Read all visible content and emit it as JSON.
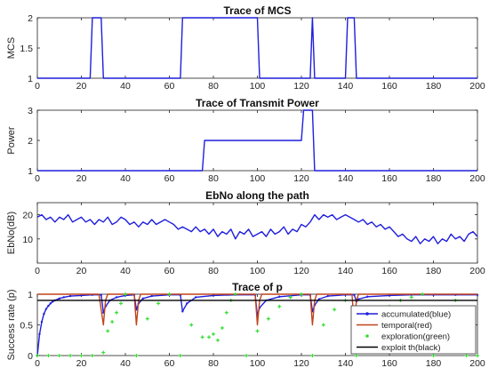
{
  "chart_data": [
    {
      "type": "line",
      "title": "Trace of MCS",
      "xlabel": "",
      "ylabel": "MCS",
      "xlim": [
        0,
        200
      ],
      "ylim": [
        1,
        2
      ],
      "xticks": [
        0,
        20,
        40,
        60,
        80,
        100,
        120,
        140,
        160,
        180,
        200
      ],
      "yticks": [
        1,
        1.5,
        2
      ],
      "ytick_labels": [
        "1",
        "1.5",
        "2"
      ],
      "grid": false,
      "series": [
        {
          "color": "#1f1fdc",
          "x": [
            0,
            24,
            25,
            29,
            30,
            65,
            66,
            100,
            101,
            124,
            125,
            126,
            140,
            141,
            144,
            145,
            200
          ],
          "y": [
            1,
            1,
            2,
            2,
            1,
            1,
            2,
            2,
            1,
            1,
            2,
            1,
            1,
            2,
            2,
            1,
            1
          ]
        }
      ]
    },
    {
      "type": "line",
      "title": "Trace of Transmit Power",
      "xlabel": "",
      "ylabel": "Power",
      "xlim": [
        0,
        200
      ],
      "ylim": [
        1,
        3
      ],
      "xticks": [
        0,
        20,
        40,
        60,
        80,
        100,
        120,
        140,
        160,
        180,
        200
      ],
      "yticks": [
        1,
        2,
        3
      ],
      "ytick_labels": [
        "1",
        "2",
        "3"
      ],
      "grid": false,
      "series": [
        {
          "color": "#1f1fdc",
          "x": [
            0,
            75,
            76,
            120,
            121,
            125,
            126,
            200
          ],
          "y": [
            1,
            1,
            2,
            2,
            3,
            3,
            1,
            1
          ]
        }
      ]
    },
    {
      "type": "line",
      "title": "EbNo along the path",
      "xlabel": "",
      "ylabel": "EbNo(dB)",
      "xlim": [
        0,
        200
      ],
      "ylim": [
        0,
        25
      ],
      "xticks": [
        0,
        20,
        40,
        60,
        80,
        100,
        120,
        140,
        160,
        180,
        200
      ],
      "yticks": [
        10,
        20
      ],
      "ytick_labels": [
        "10",
        "20"
      ],
      "grid": false,
      "series": [
        {
          "color": "#1f1fdc",
          "x": [
            0,
            2,
            4,
            6,
            8,
            10,
            12,
            14,
            16,
            18,
            20,
            22,
            24,
            26,
            28,
            30,
            32,
            34,
            36,
            38,
            40,
            42,
            44,
            46,
            48,
            50,
            52,
            54,
            56,
            58,
            60,
            62,
            64,
            66,
            68,
            70,
            72,
            74,
            76,
            78,
            80,
            82,
            84,
            86,
            88,
            90,
            92,
            94,
            96,
            98,
            100,
            102,
            104,
            106,
            108,
            110,
            112,
            114,
            116,
            118,
            120,
            122,
            124,
            126,
            128,
            130,
            132,
            134,
            136,
            138,
            140,
            142,
            144,
            146,
            148,
            150,
            152,
            154,
            156,
            158,
            160,
            162,
            164,
            166,
            168,
            170,
            172,
            174,
            176,
            178,
            180,
            182,
            184,
            186,
            188,
            190,
            192,
            194,
            196,
            198,
            200
          ],
          "y": [
            19,
            20,
            18,
            19,
            17,
            19,
            18,
            20,
            17,
            18,
            19,
            17,
            18,
            16,
            18,
            17,
            19,
            16,
            17,
            19,
            18,
            16,
            17,
            15,
            17,
            16,
            18,
            16,
            17,
            18,
            17,
            16,
            14,
            15,
            14,
            13,
            15,
            13,
            14,
            12,
            14,
            11,
            13,
            12,
            14,
            10,
            13,
            12,
            14,
            11,
            12,
            13,
            11,
            14,
            12,
            13,
            15,
            12,
            14,
            13,
            16,
            15,
            17,
            20,
            18,
            20,
            19,
            20,
            18,
            19,
            20,
            19,
            18,
            17,
            18,
            16,
            17,
            15,
            16,
            14,
            15,
            13,
            11,
            12,
            10,
            9,
            11,
            8,
            10,
            9,
            11,
            8,
            10,
            9,
            12,
            10,
            11,
            9,
            12,
            13,
            11
          ]
        }
      ]
    },
    {
      "type": "line",
      "title": "Trace of p",
      "xlabel": "",
      "ylabel": "Success rate (p)",
      "xlim": [
        0,
        200
      ],
      "ylim": [
        0,
        1
      ],
      "xticks": [
        0,
        20,
        40,
        60,
        80,
        100,
        120,
        140,
        160,
        180,
        200
      ],
      "yticks": [
        0,
        0.5,
        1
      ],
      "ytick_labels": [
        "0",
        "0.5",
        "1"
      ],
      "grid": false,
      "legend": "bottom-right",
      "legend_entries": [
        "accumulated(blue)",
        "temporal(red)",
        "exploration(green)",
        "exploit th(black)"
      ],
      "exploit_threshold": 0.9,
      "series": [
        {
          "name": "accumulated(blue)",
          "color": "#1f1fdc",
          "style": "line-markers",
          "x": [
            0,
            1,
            2,
            3,
            4,
            5,
            6,
            7,
            8,
            10,
            12,
            15,
            20,
            25,
            29,
            30,
            31,
            33,
            36,
            40,
            44,
            45,
            46,
            48,
            52,
            60,
            65,
            66,
            68,
            72,
            80,
            90,
            99,
            100,
            101,
            104,
            110,
            120,
            124,
            125,
            126,
            128,
            132,
            140,
            144,
            145,
            146,
            150,
            160,
            170,
            180,
            190,
            200
          ],
          "y": [
            0,
            0.35,
            0.55,
            0.68,
            0.76,
            0.81,
            0.85,
            0.88,
            0.9,
            0.93,
            0.95,
            0.97,
            0.98,
            0.99,
            0.99,
            0.7,
            0.8,
            0.9,
            0.95,
            0.98,
            0.99,
            0.75,
            0.85,
            0.93,
            0.97,
            0.99,
            0.99,
            0.72,
            0.85,
            0.95,
            0.98,
            0.99,
            0.99,
            0.65,
            0.78,
            0.9,
            0.96,
            0.99,
            0.99,
            0.72,
            0.82,
            0.92,
            0.97,
            0.99,
            0.99,
            0.88,
            0.92,
            0.96,
            0.98,
            0.99,
            0.99,
            0.99,
            0.99
          ]
        },
        {
          "name": "temporal(red)",
          "color": "#c0441c",
          "style": "line",
          "x": [
            0,
            28,
            30,
            31,
            32,
            44,
            45,
            46,
            47,
            99,
            100,
            101,
            102,
            124,
            125,
            126,
            127,
            143,
            144,
            145,
            146,
            200
          ],
          "y": [
            1,
            1,
            0.5,
            0.9,
            1,
            1,
            0.5,
            0.9,
            1,
            1,
            0.5,
            0.9,
            1,
            1,
            0.5,
            0.9,
            1,
            1,
            0.5,
            0.9,
            1,
            1
          ]
        },
        {
          "name": "exploration(green)",
          "color": "#33dd33",
          "style": "markers",
          "x": [
            0,
            5,
            10,
            15,
            20,
            25,
            30,
            32,
            34,
            36,
            38,
            40,
            45,
            50,
            55,
            60,
            65,
            70,
            75,
            78,
            80,
            82,
            84,
            86,
            88,
            90,
            95,
            100,
            105,
            110,
            115,
            120,
            125,
            130,
            135,
            140,
            145,
            150,
            155,
            160,
            165,
            170,
            175,
            180,
            185,
            190,
            195,
            200
          ],
          "y": [
            0,
            0,
            0,
            0,
            0,
            0,
            0.05,
            0.4,
            0.55,
            0.7,
            0.85,
            1,
            0,
            0.6,
            0.85,
            1,
            0,
            0.5,
            0.3,
            0.3,
            0.35,
            0.25,
            0.45,
            0.7,
            0.9,
            1,
            0,
            0.4,
            0.6,
            0.8,
            0.95,
            1,
            0,
            0.5,
            0.75,
            0.9,
            0,
            0.45,
            0.65,
            0.8,
            0.9,
            0.95,
            1,
            0,
            0.7,
            0.9,
            0,
            0
          ]
        },
        {
          "name": "exploit th(black)",
          "color": "#000000",
          "style": "line",
          "x": [
            0,
            200
          ],
          "y": [
            0.9,
            0.9
          ]
        }
      ]
    }
  ]
}
